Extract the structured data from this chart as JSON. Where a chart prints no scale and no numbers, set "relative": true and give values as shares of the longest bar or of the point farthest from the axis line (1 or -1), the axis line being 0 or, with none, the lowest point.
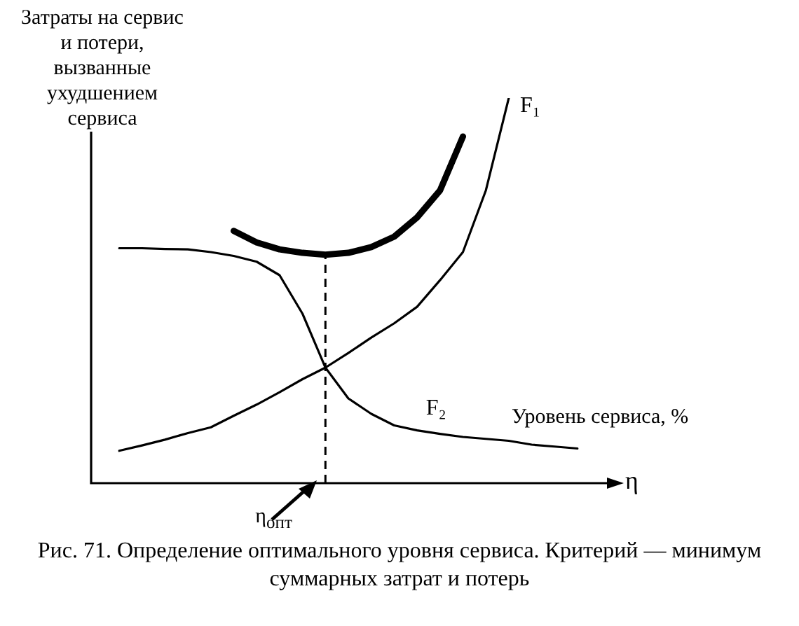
{
  "chart_data": {
    "type": "line",
    "relative": true,
    "xlabel": "Уровень сервиса, %",
    "ylabel": "Затраты на сервис\nи потери,\nвызванные\nухудшением\nсервиса",
    "legend": false,
    "marker": "none",
    "line_style": "solid",
    "categories": [
      null,
      null,
      null,
      null,
      null,
      null,
      null,
      null,
      null,
      null,
      null,
      null,
      null,
      null,
      null,
      null,
      null,
      null,
      null,
      null,
      null
    ],
    "series": [
      {
        "name": "F₁",
        "color": "#000000",
        "values": [
          0.084,
          0.098,
          0.113,
          0.13,
          0.145,
          0.175,
          0.204,
          0.236,
          0.27,
          0.3,
          0.338,
          0.378,
          0.415,
          0.458,
          0.527,
          0.6,
          0.76,
          1.0,
          null,
          null,
          null
        ]
      },
      {
        "name": "F₂",
        "color": "#000000",
        "values": [
          0.61,
          0.61,
          0.608,
          0.607,
          0.6,
          0.59,
          0.575,
          0.54,
          0.44,
          0.3,
          0.22,
          0.18,
          0.15,
          0.137,
          0.128,
          0.12,
          0.115,
          0.11,
          0.1,
          0.095,
          0.09
        ]
      },
      {
        "color": "#000000",
        "values": [
          null,
          null,
          null,
          null,
          null,
          0.655,
          0.625,
          0.607,
          0.598,
          0.593,
          0.598,
          0.613,
          0.64,
          0.69,
          0.76,
          0.9,
          null,
          null,
          null,
          null,
          null
        ]
      }
    ],
    "annotations": [
      "η",
      "η$_{опт}$",
      "Рис. 71. Определение оптимального уровня сервиса. Критерий — минимум суммарных затрат и потерь"
    ]
  }
}
